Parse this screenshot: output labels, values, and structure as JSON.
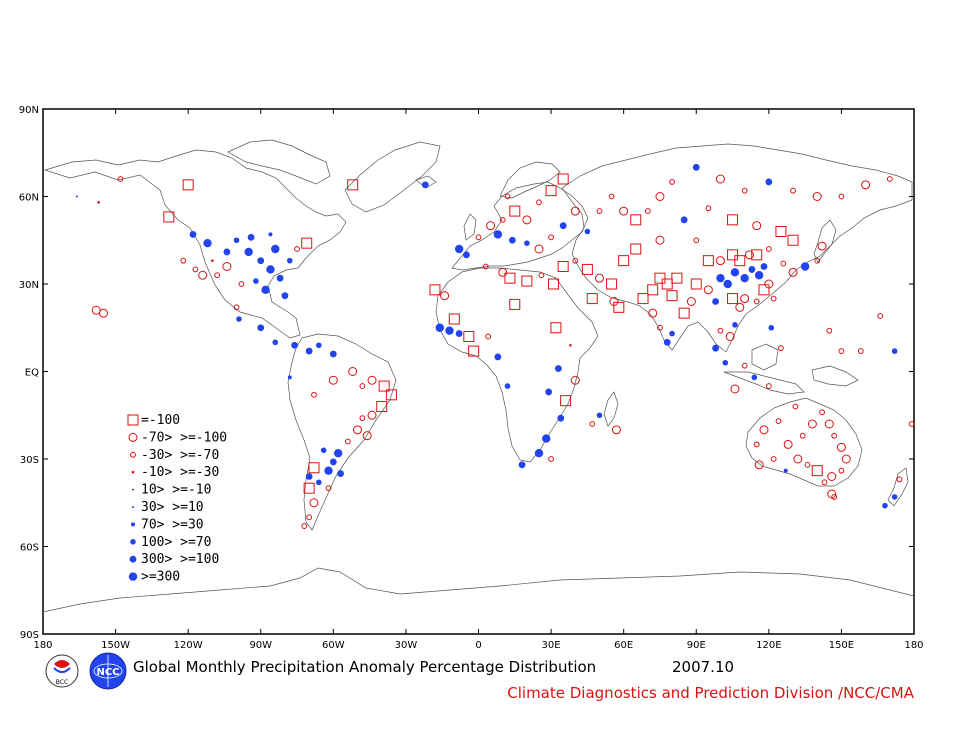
{
  "title": "Global Monthly Precipitation Anomaly Percentage Distribution",
  "period": "2007.10",
  "credit": "Climate Diagnostics and Prediction Division /NCC/CMA",
  "logos": [
    {
      "name": "bcc-logo",
      "text": "BCC"
    },
    {
      "name": "ncc-logo",
      "text": "NCC"
    }
  ],
  "colors": {
    "negative": "#dd1111",
    "positive": "#2244ee",
    "coast": "#555555",
    "credit": "#dd1111"
  },
  "chart_data": {
    "type": "scatter",
    "x_ticks": [
      "180",
      "150W",
      "120W",
      "90W",
      "60W",
      "30W",
      "0",
      "30E",
      "60E",
      "90E",
      "120E",
      "150E",
      "180"
    ],
    "y_ticks": [
      "90N",
      "60N",
      "30N",
      "EQ",
      "30S",
      "60S",
      "90S"
    ],
    "xlim": [
      -180,
      180
    ],
    "ylim": [
      -90,
      90
    ],
    "legend": [
      {
        "label": "=-100",
        "marker": "square",
        "color": "negative",
        "size": 5
      },
      {
        "label": "-70> >=-100",
        "marker": "circle",
        "color": "negative",
        "size": 4
      },
      {
        "label": "-30> >=-70",
        "marker": "circle",
        "color": "negative",
        "size": 2.4
      },
      {
        "label": "-10> >=-30",
        "marker": "dot",
        "color": "negative",
        "size": 1.3
      },
      {
        "label": "10> >=-10",
        "marker": "dot",
        "color": "black",
        "size": 0.8
      },
      {
        "label": "30> >=10",
        "marker": "dot",
        "color": "positive",
        "size": 1
      },
      {
        "label": "70> >=30",
        "marker": "dot",
        "color": "positive",
        "size": 2
      },
      {
        "label": "100> >=70",
        "marker": "dot",
        "color": "positive",
        "size": 2.8
      },
      {
        "label": "300> >=100",
        "marker": "dot",
        "color": "positive",
        "size": 3.4
      },
      {
        "label": ">=300",
        "marker": "dot",
        "color": "positive",
        "size": 4.2
      }
    ],
    "stations": [
      {
        "lon": -120,
        "lat": 64,
        "cls": 0
      },
      {
        "lon": -148,
        "lat": 66,
        "cls": 2
      },
      {
        "lon": -157,
        "lat": 58,
        "cls": 3
      },
      {
        "lon": -166,
        "lat": 60,
        "cls": 5
      },
      {
        "lon": -128,
        "lat": 53,
        "cls": 0
      },
      {
        "lon": -118,
        "lat": 47,
        "cls": 8
      },
      {
        "lon": -112,
        "lat": 44,
        "cls": 9
      },
      {
        "lon": -104,
        "lat": 41,
        "cls": 8
      },
      {
        "lon": -100,
        "lat": 45,
        "cls": 7
      },
      {
        "lon": -95,
        "lat": 41,
        "cls": 9
      },
      {
        "lon": -90,
        "lat": 38,
        "cls": 8
      },
      {
        "lon": -86,
        "lat": 35,
        "cls": 9
      },
      {
        "lon": -82,
        "lat": 32,
        "cls": 8
      },
      {
        "lon": -78,
        "lat": 38,
        "cls": 7
      },
      {
        "lon": -75,
        "lat": 42,
        "cls": 2
      },
      {
        "lon": -71,
        "lat": 44,
        "cls": 0
      },
      {
        "lon": -108,
        "lat": 33,
        "cls": 2
      },
      {
        "lon": -114,
        "lat": 33,
        "cls": 1
      },
      {
        "lon": -117,
        "lat": 35,
        "cls": 2
      },
      {
        "lon": -98,
        "lat": 30,
        "cls": 2
      },
      {
        "lon": -104,
        "lat": 36,
        "cls": 1
      },
      {
        "lon": -122,
        "lat": 38,
        "cls": 2
      },
      {
        "lon": -110,
        "lat": 38,
        "cls": 3
      },
      {
        "lon": -92,
        "lat": 31,
        "cls": 7
      },
      {
        "lon": -88,
        "lat": 28,
        "cls": 9
      },
      {
        "lon": -80,
        "lat": 26,
        "cls": 8
      },
      {
        "lon": -84,
        "lat": 42,
        "cls": 9
      },
      {
        "lon": -94,
        "lat": 46,
        "cls": 8
      },
      {
        "lon": -86,
        "lat": 47,
        "cls": 6
      },
      {
        "lon": -158,
        "lat": 21,
        "cls": 1
      },
      {
        "lon": -155,
        "lat": 20,
        "cls": 1
      },
      {
        "lon": -100,
        "lat": 22,
        "cls": 2
      },
      {
        "lon": -99,
        "lat": 18,
        "cls": 7
      },
      {
        "lon": -90,
        "lat": 15,
        "cls": 8
      },
      {
        "lon": -84,
        "lat": 10,
        "cls": 7
      },
      {
        "lon": -76,
        "lat": 9,
        "cls": 8
      },
      {
        "lon": -70,
        "lat": 7,
        "cls": 8
      },
      {
        "lon": -66,
        "lat": 9,
        "cls": 7
      },
      {
        "lon": -60,
        "lat": 6,
        "cls": 8
      },
      {
        "lon": -78,
        "lat": -2,
        "cls": 6
      },
      {
        "lon": -68,
        "lat": -8,
        "cls": 2
      },
      {
        "lon": -60,
        "lat": -3,
        "cls": 1
      },
      {
        "lon": -52,
        "lat": 0,
        "cls": 1
      },
      {
        "lon": -48,
        "lat": -5,
        "cls": 2
      },
      {
        "lon": -44,
        "lat": -3,
        "cls": 1
      },
      {
        "lon": -39,
        "lat": -5,
        "cls": 0
      },
      {
        "lon": -36,
        "lat": -8,
        "cls": 0
      },
      {
        "lon": -40,
        "lat": -12,
        "cls": 0
      },
      {
        "lon": -44,
        "lat": -15,
        "cls": 1
      },
      {
        "lon": -48,
        "lat": -16,
        "cls": 2
      },
      {
        "lon": -50,
        "lat": -20,
        "cls": 1
      },
      {
        "lon": -54,
        "lat": -24,
        "cls": 2
      },
      {
        "lon": -46,
        "lat": -22,
        "cls": 1
      },
      {
        "lon": -58,
        "lat": -28,
        "cls": 9
      },
      {
        "lon": -60,
        "lat": -31,
        "cls": 8
      },
      {
        "lon": -62,
        "lat": -34,
        "cls": 9
      },
      {
        "lon": -57,
        "lat": -35,
        "cls": 8
      },
      {
        "lon": -64,
        "lat": -27,
        "cls": 7
      },
      {
        "lon": -68,
        "lat": -33,
        "cls": 0
      },
      {
        "lon": -70,
        "lat": -36,
        "cls": 8
      },
      {
        "lon": -70,
        "lat": -40,
        "cls": 0
      },
      {
        "lon": -68,
        "lat": -45,
        "cls": 1
      },
      {
        "lon": -70,
        "lat": -50,
        "cls": 2
      },
      {
        "lon": -72,
        "lat": -53,
        "cls": 2
      },
      {
        "lon": -66,
        "lat": -38,
        "cls": 7
      },
      {
        "lon": -62,
        "lat": -40,
        "cls": 2
      },
      {
        "lon": -52,
        "lat": 64,
        "cls": 0
      },
      {
        "lon": -22,
        "lat": 64,
        "cls": 8
      },
      {
        "lon": -18,
        "lat": 28,
        "cls": 0
      },
      {
        "lon": -14,
        "lat": 26,
        "cls": 1
      },
      {
        "lon": -16,
        "lat": 15,
        "cls": 9
      },
      {
        "lon": -12,
        "lat": 14,
        "cls": 9
      },
      {
        "lon": -8,
        "lat": 13,
        "cls": 8
      },
      {
        "lon": -4,
        "lat": 12,
        "cls": 0
      },
      {
        "lon": -10,
        "lat": 18,
        "cls": 0
      },
      {
        "lon": -2,
        "lat": 7,
        "cls": 0
      },
      {
        "lon": 4,
        "lat": 12,
        "cls": 2
      },
      {
        "lon": 3,
        "lat": 36,
        "cls": 2
      },
      {
        "lon": 10,
        "lat": 34,
        "cls": 1
      },
      {
        "lon": 13,
        "lat": 32,
        "cls": 0
      },
      {
        "lon": 20,
        "lat": 31,
        "cls": 0
      },
      {
        "lon": 31,
        "lat": 30,
        "cls": 0
      },
      {
        "lon": 26,
        "lat": 33,
        "cls": 2
      },
      {
        "lon": 15,
        "lat": 23,
        "cls": 0
      },
      {
        "lon": 32,
        "lat": 15,
        "cls": 0
      },
      {
        "lon": 38,
        "lat": 9,
        "cls": 3
      },
      {
        "lon": 33,
        "lat": 1,
        "cls": 8
      },
      {
        "lon": 40,
        "lat": -3,
        "cls": 1
      },
      {
        "lon": 29,
        "lat": -7,
        "cls": 8
      },
      {
        "lon": 36,
        "lat": -10,
        "cls": 0
      },
      {
        "lon": 34,
        "lat": -16,
        "cls": 8
      },
      {
        "lon": 28,
        "lat": -23,
        "cls": 9
      },
      {
        "lon": 25,
        "lat": -28,
        "cls": 9
      },
      {
        "lon": 18,
        "lat": -32,
        "cls": 8
      },
      {
        "lon": 30,
        "lat": -30,
        "cls": 2
      },
      {
        "lon": 47,
        "lat": -18,
        "cls": 2
      },
      {
        "lon": 50,
        "lat": -15,
        "cls": 7
      },
      {
        "lon": 57,
        "lat": -20,
        "cls": 1
      },
      {
        "lon": 12,
        "lat": -5,
        "cls": 7
      },
      {
        "lon": 8,
        "lat": 5,
        "cls": 8
      },
      {
        "lon": -5,
        "lat": 40,
        "cls": 8
      },
      {
        "lon": -8,
        "lat": 42,
        "cls": 9
      },
      {
        "lon": 0,
        "lat": 46,
        "cls": 2
      },
      {
        "lon": 5,
        "lat": 50,
        "cls": 1
      },
      {
        "lon": 10,
        "lat": 52,
        "cls": 2
      },
      {
        "lon": 15,
        "lat": 55,
        "cls": 0
      },
      {
        "lon": 20,
        "lat": 52,
        "cls": 1
      },
      {
        "lon": 25,
        "lat": 58,
        "cls": 2
      },
      {
        "lon": 30,
        "lat": 62,
        "cls": 0
      },
      {
        "lon": 35,
        "lat": 66,
        "cls": 0
      },
      {
        "lon": 12,
        "lat": 60,
        "cls": 2
      },
      {
        "lon": 8,
        "lat": 47,
        "cls": 9
      },
      {
        "lon": 14,
        "lat": 45,
        "cls": 8
      },
      {
        "lon": 20,
        "lat": 44,
        "cls": 7
      },
      {
        "lon": 25,
        "lat": 42,
        "cls": 1
      },
      {
        "lon": 30,
        "lat": 46,
        "cls": 2
      },
      {
        "lon": 35,
        "lat": 50,
        "cls": 8
      },
      {
        "lon": 40,
        "lat": 55,
        "cls": 1
      },
      {
        "lon": 45,
        "lat": 48,
        "cls": 7
      },
      {
        "lon": 50,
        "lat": 55,
        "cls": 2
      },
      {
        "lon": 55,
        "lat": 60,
        "cls": 2
      },
      {
        "lon": 60,
        "lat": 55,
        "cls": 1
      },
      {
        "lon": 65,
        "lat": 52,
        "cls": 0
      },
      {
        "lon": 70,
        "lat": 55,
        "cls": 2
      },
      {
        "lon": 75,
        "lat": 60,
        "cls": 1
      },
      {
        "lon": 80,
        "lat": 65,
        "cls": 2
      },
      {
        "lon": 90,
        "lat": 70,
        "cls": 8
      },
      {
        "lon": 100,
        "lat": 66,
        "cls": 1
      },
      {
        "lon": 110,
        "lat": 62,
        "cls": 2
      },
      {
        "lon": 120,
        "lat": 65,
        "cls": 8
      },
      {
        "lon": 130,
        "lat": 62,
        "cls": 2
      },
      {
        "lon": 140,
        "lat": 60,
        "cls": 1
      },
      {
        "lon": 150,
        "lat": 60,
        "cls": 2
      },
      {
        "lon": 160,
        "lat": 64,
        "cls": 1
      },
      {
        "lon": 170,
        "lat": 66,
        "cls": 2
      },
      {
        "lon": 95,
        "lat": 56,
        "cls": 2
      },
      {
        "lon": 105,
        "lat": 52,
        "cls": 0
      },
      {
        "lon": 115,
        "lat": 50,
        "cls": 1
      },
      {
        "lon": 125,
        "lat": 48,
        "cls": 0
      },
      {
        "lon": 130,
        "lat": 45,
        "cls": 0
      },
      {
        "lon": 85,
        "lat": 52,
        "cls": 8
      },
      {
        "lon": 90,
        "lat": 45,
        "cls": 2
      },
      {
        "lon": 75,
        "lat": 45,
        "cls": 1
      },
      {
        "lon": 65,
        "lat": 42,
        "cls": 0
      },
      {
        "lon": 60,
        "lat": 38,
        "cls": 0
      },
      {
        "lon": 55,
        "lat": 30,
        "cls": 0
      },
      {
        "lon": 50,
        "lat": 32,
        "cls": 1
      },
      {
        "lon": 45,
        "lat": 35,
        "cls": 0
      },
      {
        "lon": 40,
        "lat": 38,
        "cls": 2
      },
      {
        "lon": 35,
        "lat": 36,
        "cls": 0
      },
      {
        "lon": 47,
        "lat": 25,
        "cls": 0
      },
      {
        "lon": 56,
        "lat": 24,
        "cls": 1
      },
      {
        "lon": 58,
        "lat": 22,
        "cls": 0
      },
      {
        "lon": 68,
        "lat": 25,
        "cls": 0
      },
      {
        "lon": 72,
        "lat": 28,
        "cls": 0
      },
      {
        "lon": 75,
        "lat": 32,
        "cls": 0
      },
      {
        "lon": 78,
        "lat": 30,
        "cls": 0
      },
      {
        "lon": 72,
        "lat": 20,
        "cls": 1
      },
      {
        "lon": 75,
        "lat": 15,
        "cls": 2
      },
      {
        "lon": 80,
        "lat": 13,
        "cls": 7
      },
      {
        "lon": 78,
        "lat": 10,
        "cls": 8
      },
      {
        "lon": 85,
        "lat": 20,
        "cls": 0
      },
      {
        "lon": 88,
        "lat": 24,
        "cls": 1
      },
      {
        "lon": 80,
        "lat": 26,
        "cls": 0
      },
      {
        "lon": 82,
        "lat": 32,
        "cls": 0
      },
      {
        "lon": 90,
        "lat": 30,
        "cls": 0
      },
      {
        "lon": 95,
        "lat": 28,
        "cls": 1
      },
      {
        "lon": 98,
        "lat": 24,
        "cls": 8
      },
      {
        "lon": 100,
        "lat": 32,
        "cls": 9
      },
      {
        "lon": 103,
        "lat": 30,
        "cls": 9
      },
      {
        "lon": 106,
        "lat": 34,
        "cls": 9
      },
      {
        "lon": 110,
        "lat": 32,
        "cls": 9
      },
      {
        "lon": 113,
        "lat": 35,
        "cls": 8
      },
      {
        "lon": 116,
        "lat": 33,
        "cls": 9
      },
      {
        "lon": 118,
        "lat": 36,
        "cls": 8
      },
      {
        "lon": 108,
        "lat": 38,
        "cls": 0
      },
      {
        "lon": 112,
        "lat": 40,
        "cls": 1
      },
      {
        "lon": 115,
        "lat": 40,
        "cls": 0
      },
      {
        "lon": 120,
        "lat": 42,
        "cls": 2
      },
      {
        "lon": 105,
        "lat": 40,
        "cls": 0
      },
      {
        "lon": 100,
        "lat": 38,
        "cls": 1
      },
      {
        "lon": 95,
        "lat": 38,
        "cls": 0
      },
      {
        "lon": 110,
        "lat": 25,
        "cls": 1
      },
      {
        "lon": 115,
        "lat": 24,
        "cls": 2
      },
      {
        "lon": 118,
        "lat": 28,
        "cls": 0
      },
      {
        "lon": 120,
        "lat": 30,
        "cls": 1
      },
      {
        "lon": 122,
        "lat": 25,
        "cls": 2
      },
      {
        "lon": 105,
        "lat": 25,
        "cls": 0
      },
      {
        "lon": 108,
        "lat": 22,
        "cls": 1
      },
      {
        "lon": 126,
        "lat": 37,
        "cls": 2
      },
      {
        "lon": 130,
        "lat": 34,
        "cls": 1
      },
      {
        "lon": 135,
        "lat": 36,
        "cls": 9
      },
      {
        "lon": 140,
        "lat": 38,
        "cls": 2
      },
      {
        "lon": 142,
        "lat": 43,
        "cls": 1
      },
      {
        "lon": 100,
        "lat": 14,
        "cls": 2
      },
      {
        "lon": 104,
        "lat": 12,
        "cls": 1
      },
      {
        "lon": 106,
        "lat": 16,
        "cls": 7
      },
      {
        "lon": 98,
        "lat": 8,
        "cls": 8
      },
      {
        "lon": 102,
        "lat": 3,
        "cls": 7
      },
      {
        "lon": 110,
        "lat": 2,
        "cls": 2
      },
      {
        "lon": 114,
        "lat": -2,
        "cls": 7
      },
      {
        "lon": 120,
        "lat": -5,
        "cls": 2
      },
      {
        "lon": 106,
        "lat": -6,
        "cls": 1
      },
      {
        "lon": 125,
        "lat": 8,
        "cls": 2
      },
      {
        "lon": 121,
        "lat": 15,
        "cls": 7
      },
      {
        "lon": 131,
        "lat": -12,
        "cls": 2
      },
      {
        "lon": 124,
        "lat": -17,
        "cls": 2
      },
      {
        "lon": 118,
        "lat": -20,
        "cls": 1
      },
      {
        "lon": 115,
        "lat": -25,
        "cls": 2
      },
      {
        "lon": 116,
        "lat": -32,
        "cls": 1
      },
      {
        "lon": 122,
        "lat": -30,
        "cls": 2
      },
      {
        "lon": 128,
        "lat": -25,
        "cls": 1
      },
      {
        "lon": 134,
        "lat": -22,
        "cls": 2
      },
      {
        "lon": 138,
        "lat": -18,
        "cls": 1
      },
      {
        "lon": 142,
        "lat": -14,
        "cls": 2
      },
      {
        "lon": 145,
        "lat": -18,
        "cls": 1
      },
      {
        "lon": 147,
        "lat": -22,
        "cls": 2
      },
      {
        "lon": 150,
        "lat": -26,
        "cls": 1
      },
      {
        "lon": 152,
        "lat": -30,
        "cls": 1
      },
      {
        "lon": 150,
        "lat": -34,
        "cls": 2
      },
      {
        "lon": 146,
        "lat": -36,
        "cls": 1
      },
      {
        "lon": 143,
        "lat": -38,
        "cls": 2
      },
      {
        "lon": 140,
        "lat": -34,
        "cls": 0
      },
      {
        "lon": 136,
        "lat": -32,
        "cls": 2
      },
      {
        "lon": 132,
        "lat": -30,
        "cls": 1
      },
      {
        "lon": 127,
        "lat": -34,
        "cls": 6
      },
      {
        "lon": 146,
        "lat": -42,
        "cls": 1
      },
      {
        "lon": 147,
        "lat": -43,
        "cls": 2
      },
      {
        "lon": 174,
        "lat": -37,
        "cls": 2
      },
      {
        "lon": 172,
        "lat": -43,
        "cls": 7
      },
      {
        "lon": 168,
        "lat": -46,
        "cls": 7
      },
      {
        "lon": 166,
        "lat": 19,
        "cls": 2
      },
      {
        "lon": 179,
        "lat": -18,
        "cls": 2
      },
      {
        "lon": 150,
        "lat": 7,
        "cls": 2
      },
      {
        "lon": 158,
        "lat": 7,
        "cls": 2
      },
      {
        "lon": 172,
        "lat": 7,
        "cls": 7
      },
      {
        "lon": 145,
        "lat": 14,
        "cls": 2
      }
    ]
  }
}
